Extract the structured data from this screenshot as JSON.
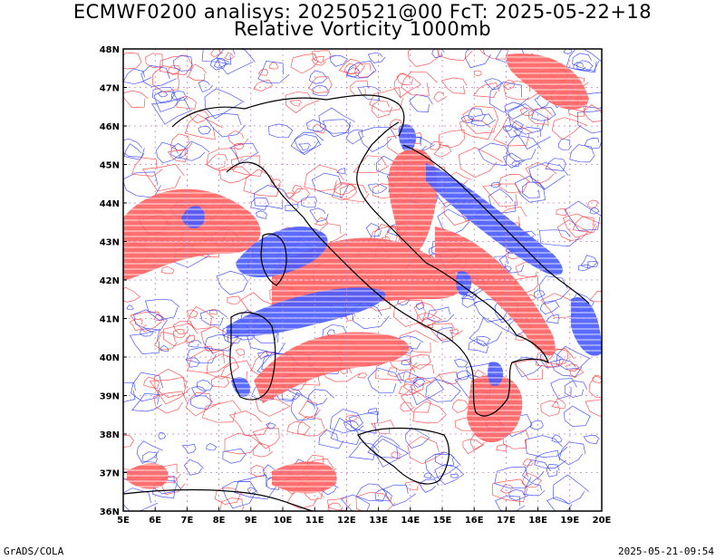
{
  "title_line1": "ECMWF0200 analisys: 20250521@00 FcT: 2025-05-22+18",
  "title_line2": "Relative Vorticity 1000mb",
  "footer_left": "GrADS/COLA",
  "footer_right": "2025-05-21-09:54",
  "map": {
    "lon_range": [
      5,
      20
    ],
    "lat_range": [
      36,
      48
    ],
    "lon_ticks": [
      "5E",
      "6E",
      "7E",
      "8E",
      "9E",
      "10E",
      "11E",
      "12E",
      "13E",
      "14E",
      "15E",
      "16E",
      "17E",
      "18E",
      "19E",
      "20E"
    ],
    "lat_ticks": [
      "36N",
      "37N",
      "38N",
      "39N",
      "40N",
      "41N",
      "42N",
      "43N",
      "44N",
      "45N",
      "46N",
      "47N",
      "48N"
    ],
    "colors": {
      "positive": "#ff3a3a",
      "negative": "#2a3aff",
      "coast": "#000000",
      "grid": "#c080c0"
    }
  }
}
